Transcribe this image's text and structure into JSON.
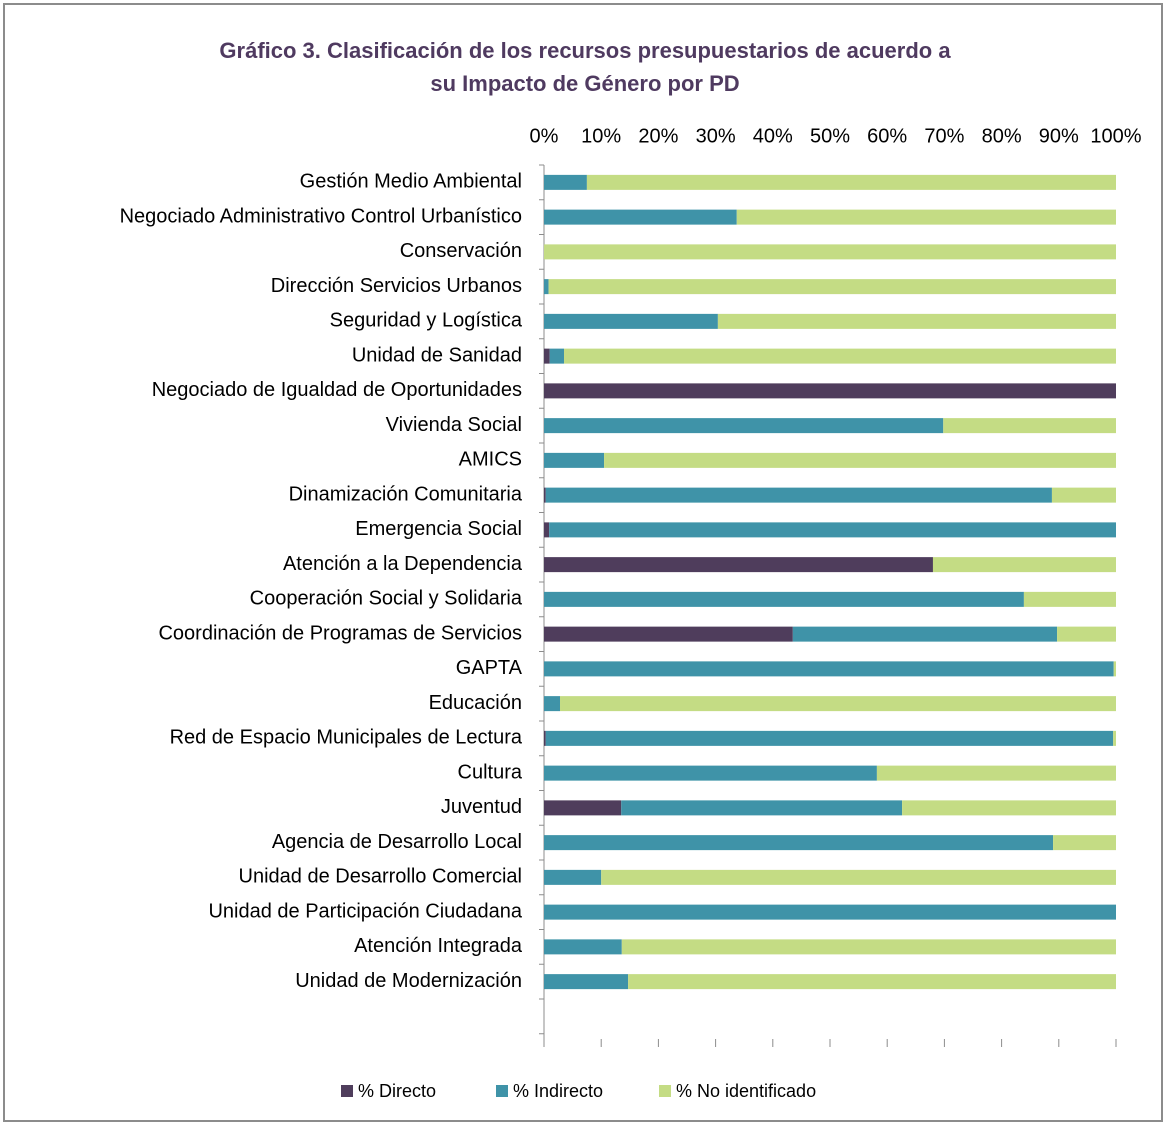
{
  "chart_data": {
    "type": "stacked_barh",
    "title": [
      "Gráfico 3. Clasificación de los recursos presupuestarios de acuerdo a",
      "su Impacto de Género por PD"
    ],
    "categories": [
      "Gestión Medio Ambiental",
      "Negociado Administrativo Control Urbanístico",
      "Conservación",
      "Dirección Servicios Urbanos",
      "Seguridad y Logística",
      "Unidad de Sanidad",
      "Negociado de Igualdad de Oportunidades",
      "Vivienda Social",
      "AMICS",
      "Dinamización Comunitaria",
      "Emergencia Social",
      "Atención a la Dependencia",
      "Cooperación Social y Solidaria",
      "Coordinación de Programas de Servicios",
      "GAPTA",
      "Educación",
      "Red de Espacio Municipales de Lectura",
      "Cultura",
      "Juventud",
      "Agencia de Desarrollo Local",
      "Unidad de Desarrollo Comercial",
      "Unidad de Participación Ciudadana",
      "Atención Integrada",
      "Unidad de Modernización"
    ],
    "series": [
      {
        "name": "% Directo",
        "color": "#4f3d5c",
        "values": [
          0,
          0,
          0,
          0,
          0,
          1,
          100,
          0,
          0,
          0.3,
          0.9,
          68,
          0,
          43.5,
          0,
          0,
          0.3,
          0,
          13.5,
          0,
          0,
          0,
          0,
          0
        ]
      },
      {
        "name": "% Indirecto",
        "color": "#3f93a8",
        "values": [
          7.5,
          33.7,
          0,
          0.8,
          30.4,
          2.5,
          0,
          69.8,
          10.5,
          88.5,
          99.1,
          0,
          83.9,
          46.2,
          99.6,
          2.8,
          99.2,
          58.2,
          49.1,
          89,
          10,
          100,
          13.6,
          14.7
        ]
      },
      {
        "name": "% No identificado",
        "color": "#c4dc84",
        "values": [
          92.5,
          66.3,
          100,
          99.2,
          69.6,
          96.5,
          0,
          30.2,
          89.5,
          11.2,
          0,
          32,
          16.1,
          10.3,
          0.4,
          97.2,
          0.5,
          41.8,
          37.4,
          11,
          90,
          0,
          86.4,
          85.3
        ]
      }
    ],
    "xlim": [
      0,
      100
    ],
    "xticks": [
      {
        "value": 0,
        "label": "0%"
      },
      {
        "value": 10,
        "label": "10%"
      },
      {
        "value": 20,
        "label": "20%"
      },
      {
        "value": 30,
        "label": "30%"
      },
      {
        "value": 40,
        "label": "40%"
      },
      {
        "value": 50,
        "label": "50%"
      },
      {
        "value": 60,
        "label": "60%"
      },
      {
        "value": 70,
        "label": "70%"
      },
      {
        "value": 80,
        "label": "80%"
      },
      {
        "value": 90,
        "label": "90%"
      },
      {
        "value": 100,
        "label": "100%"
      }
    ],
    "legend": "bottom"
  }
}
